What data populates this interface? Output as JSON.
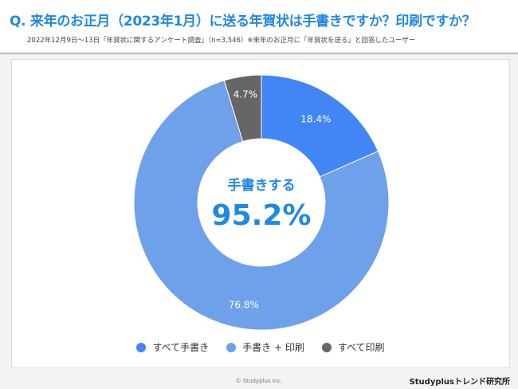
{
  "header": {
    "title": "Q. 来年のお正月（2023年1月）に送る年賀状は手書きですか？印刷ですか？",
    "subtitle": "2022年12月9日〜13日「年賀状に関するアンケート調査」（n=3,546）※来年のお正月に「年賀状を送る」と回答したユーザー"
  },
  "chart_data": {
    "type": "pie",
    "variant": "donut",
    "title": "Q. 来年のお正月（2023年1月）に送る年賀状は手書きですか？印刷ですか？",
    "categories": [
      "すべて手書き",
      "手書き + 印刷",
      "すべて印刷"
    ],
    "values": [
      18.4,
      76.8,
      4.7
    ],
    "labels": [
      "18.4%",
      "76.8%",
      "4.7%"
    ],
    "colors": [
      "#4285f4",
      "#6fa0ea",
      "#666666"
    ],
    "center_label": "手書きする",
    "center_value": "95.2%",
    "legend_position": "bottom"
  },
  "footer": {
    "copyright": "© Studyplus Inc.",
    "brand": "Studyplusトレンド研究所"
  }
}
